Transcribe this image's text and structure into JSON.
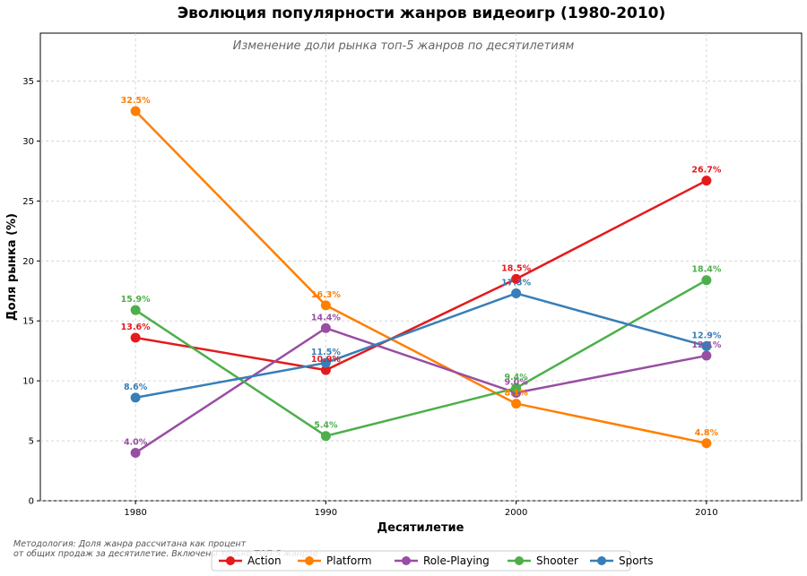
{
  "chart_data": {
    "type": "line",
    "title": "Эволюция популярности жанров видеоигр (1980-2010)",
    "subtitle": "Изменение доли рынка топ-5 жанров по десятилетиям",
    "xlabel": "Десятилетие",
    "ylabel": "Доля рынка (%)",
    "x": [
      1980,
      1990,
      2000,
      2010
    ],
    "x_tick_labels": [
      "1980",
      "1990",
      "2000",
      "2010"
    ],
    "xlim": [
      1975,
      2015
    ],
    "ylim": [
      0,
      39
    ],
    "y_ticks": [
      0,
      5,
      10,
      15,
      20,
      25,
      30,
      35
    ],
    "grid": true,
    "legend_position": "bottom-center",
    "series": [
      {
        "name": "Action",
        "color": "#e41a1c",
        "values": [
          13.6,
          10.9,
          18.5,
          26.7
        ],
        "labels": [
          "13.6%",
          "10.9%",
          "18.5%",
          "26.7%"
        ]
      },
      {
        "name": "Platform",
        "color": "#ff7f00",
        "values": [
          32.5,
          16.3,
          8.1,
          4.8
        ],
        "labels": [
          "32.5%",
          "16.3%",
          "8.1%",
          "4.8%"
        ]
      },
      {
        "name": "Role-Playing",
        "color": "#984ea3",
        "values": [
          4.0,
          14.4,
          9.0,
          12.1
        ],
        "labels": [
          "4.0%",
          "14.4%",
          "9.0%",
          "12.1%"
        ]
      },
      {
        "name": "Shooter",
        "color": "#4daf4a",
        "values": [
          15.9,
          5.4,
          9.4,
          18.4
        ],
        "labels": [
          "15.9%",
          "5.4%",
          "9.4%",
          "18.4%"
        ]
      },
      {
        "name": "Sports",
        "color": "#377eb8",
        "values": [
          8.6,
          11.5,
          17.3,
          12.9
        ],
        "labels": [
          "8.6%",
          "11.5%",
          "17.3%",
          "12.9%"
        ]
      }
    ],
    "note_lines": [
      "Методология: Доля жанра рассчитана как процент",
      "от общих продаж за десятилетие. Включены только ТОП-5 жанров"
    ]
  }
}
